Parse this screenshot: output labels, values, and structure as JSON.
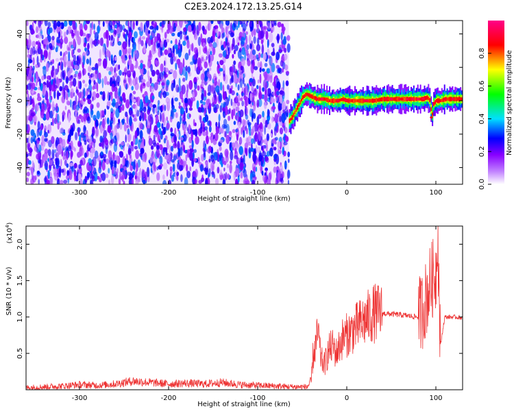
{
  "title": "C2E3.2024.172.13.25.G14",
  "chart_data": [
    {
      "type": "heatmap",
      "xlabel": "Height of straight line (km)",
      "ylabel": "Frequency (Hz)",
      "xlim": [
        -360,
        130
      ],
      "ylim": [
        -50,
        48
      ],
      "x_ticks": [
        -300,
        -200,
        -100,
        0,
        100
      ],
      "y_ticks": [
        -40,
        -20,
        0,
        20,
        40
      ],
      "colorbar": {
        "label": "Normalized spectral amplitude",
        "range": [
          0.0,
          1.0
        ],
        "ticks": [
          0.0,
          0.2,
          0.4,
          0.6,
          0.8
        ],
        "colors": [
          "#ffffff",
          "#8800ff",
          "#0000ff",
          "#00ffff",
          "#00ff00",
          "#ffff00",
          "#ff0000",
          "#ff0088"
        ]
      },
      "regions": [
        {
          "x_range": [
            -360,
            -65
          ],
          "description_level": "noise",
          "amplitude_range": [
            0.05,
            0.35
          ]
        },
        {
          "x_range": [
            -65,
            130
          ],
          "description_level": "signal"
        }
      ],
      "signal_track": {
        "x": [
          -65,
          -62,
          -58,
          -54,
          -50,
          -46,
          -42,
          -38,
          -34,
          -30,
          -25,
          -20,
          -15,
          -10,
          -5,
          0,
          10,
          20,
          30,
          40,
          50,
          60,
          70,
          80,
          85,
          90,
          93,
          95,
          97,
          100,
          105,
          110,
          120,
          130
        ],
        "y": [
          -12,
          -10,
          -6,
          -2,
          2,
          4,
          3,
          2,
          1,
          1,
          1,
          0,
          0,
          0,
          1,
          0,
          0,
          0,
          0,
          1,
          1,
          1,
          1,
          1,
          1,
          2,
          0,
          -10,
          -2,
          0,
          0,
          1,
          1,
          1
        ]
      }
    },
    {
      "type": "line",
      "xlabel": "Height of straight line (km)",
      "ylabel": "SNR (10 * v/v)",
      "y_scale_label": "(x10",
      "y_scale_exp": "4",
      "y_scale_close": ")",
      "xlim": [
        -360,
        130
      ],
      "ylim": [
        0,
        2.25
      ],
      "x_ticks": [
        -300,
        -200,
        -100,
        0,
        100
      ],
      "y_ticks": [
        0.5,
        1.0,
        1.5,
        2.0
      ],
      "y_tick_labels": [
        "0.5",
        "1.0",
        "1.5",
        "2.0"
      ],
      "color": "#ee3333",
      "series": [
        {
          "x": [
            -360,
            -340,
            -320,
            -300,
            -280,
            -260,
            -240,
            -220,
            -200,
            -180,
            -160,
            -140,
            -120,
            -100,
            -80,
            -60,
            -45,
            -40,
            -38,
            -35,
            -32,
            -30,
            -28,
            -25,
            -20,
            -15,
            -12,
            -10,
            -5,
            0,
            10,
            20,
            30,
            40,
            60,
            80,
            85,
            90,
            95,
            100,
            102,
            105,
            110,
            120,
            130
          ],
          "y": [
            0.03,
            0.04,
            0.05,
            0.07,
            0.06,
            0.08,
            0.12,
            0.1,
            0.08,
            0.09,
            0.08,
            0.1,
            0.07,
            0.06,
            0.05,
            0.04,
            0.04,
            0.1,
            0.45,
            0.6,
            0.8,
            0.5,
            0.4,
            0.35,
            0.55,
            0.6,
            0.5,
            0.55,
            0.7,
            0.75,
            0.85,
            0.95,
            1.05,
            1.05,
            1.03,
            1.0,
            1.1,
            1.3,
            1.5,
            1.6,
            2.2,
            0.6,
            1.0,
            1.0,
            0.99
          ]
        }
      ]
    }
  ]
}
